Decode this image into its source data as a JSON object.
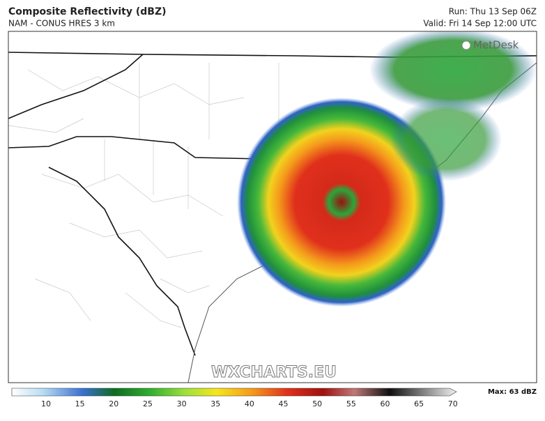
{
  "header": {
    "title": "Composite Reflectivity (dBZ)",
    "subtitle": "NAM - CONUS HRES 3 km",
    "run": "Run: Thu 13 Sep 06Z",
    "valid": "Valid: Fri 14 Sep 12:00 UTC"
  },
  "logo": "MetDesk",
  "watermark": "WXCHARTS.EU",
  "colorbar": {
    "ticks": [
      10,
      15,
      20,
      25,
      30,
      35,
      40,
      45,
      50,
      55,
      60,
      65,
      70
    ],
    "max_label": "Max: 63 dBZ"
  }
}
